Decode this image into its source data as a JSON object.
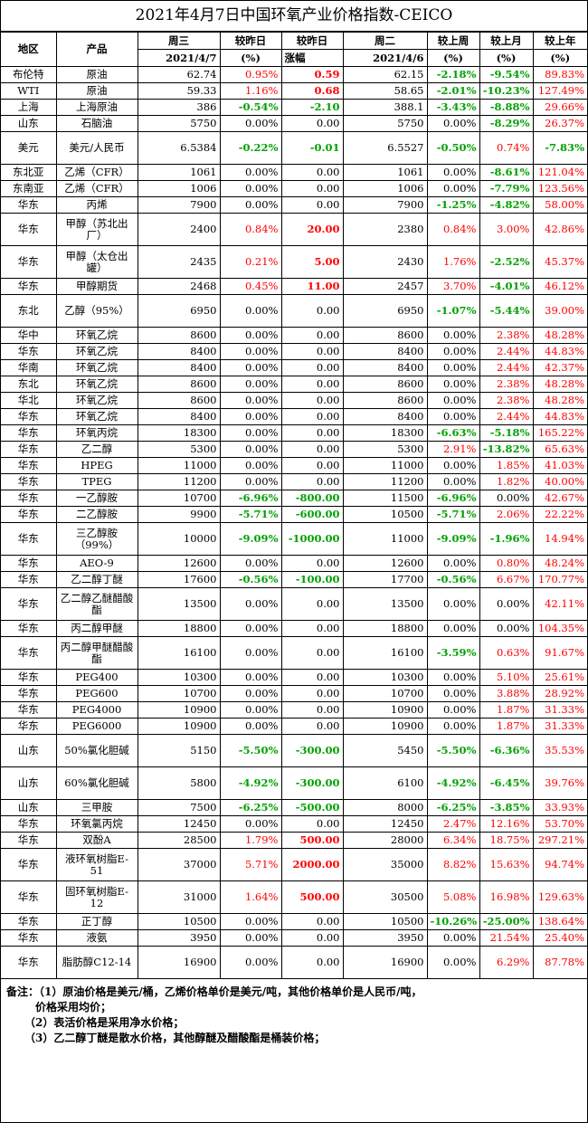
{
  "title": "2021年4月7日中国环氧产业价格指数-CEICO",
  "header": {
    "row1": [
      "地区",
      "产品",
      "周三",
      "较昨日",
      "较昨日",
      "周二",
      "较上周",
      "较上月",
      "较上年"
    ],
    "row2": [
      "2021/4/7",
      "(%)",
      "涨幅",
      "2021/4/6",
      "(%)",
      "(%)",
      "(%)"
    ]
  },
  "rows": [
    {
      "region": "布伦特",
      "product": "原油",
      "wed": "62.74",
      "pct": "0.95%",
      "chg": "0.59",
      "tue": "62.15",
      "week": "-2.18%",
      "month": "-9.54%",
      "year": "89.83%",
      "h": 18
    },
    {
      "region": "WTI",
      "product": "原油",
      "wed": "59.33",
      "pct": "1.16%",
      "chg": "0.68",
      "tue": "58.65",
      "week": "-2.01%",
      "month": "-10.23%",
      "year": "127.49%",
      "h": 18
    },
    {
      "region": "上海",
      "product": "上海原油",
      "wed": "386",
      "pct": "-0.54%",
      "chg": "-2.10",
      "tue": "388.1",
      "week": "-3.43%",
      "month": "-8.88%",
      "year": "29.66%",
      "h": 18
    },
    {
      "region": "山东",
      "product": "石脑油",
      "wed": "5750",
      "pct": "0.00%",
      "chg": "0.00",
      "tue": "5750",
      "week": "0.00%",
      "month": "-8.29%",
      "year": "26.37%",
      "h": 18
    },
    {
      "region": "美元",
      "product": "美元/人民币",
      "wed": "6.5384",
      "pct": "-0.22%",
      "chg": "-0.01",
      "tue": "6.5527",
      "week": "-0.50%",
      "month": "0.74%",
      "year": "-7.83%",
      "h": 36
    },
    {
      "region": "东北亚",
      "product": "乙烯（CFR）",
      "wed": "1061",
      "pct": "0.00%",
      "chg": "0.00",
      "tue": "1061",
      "week": "0.00%",
      "month": "-8.61%",
      "year": "121.04%",
      "h": 18
    },
    {
      "region": "东南亚",
      "product": "乙烯（CFR）",
      "wed": "1006",
      "pct": "0.00%",
      "chg": "0.00",
      "tue": "1006",
      "week": "0.00%",
      "month": "-7.79%",
      "year": "123.56%",
      "h": 18
    },
    {
      "region": "华东",
      "product": "丙烯",
      "wed": "7900",
      "pct": "0.00%",
      "chg": "0.00",
      "tue": "7900",
      "week": "-1.25%",
      "month": "-4.82%",
      "year": "58.00%",
      "h": 18
    },
    {
      "region": "华东",
      "product": "甲醇（苏北出厂）",
      "wed": "2400",
      "pct": "0.84%",
      "chg": "20.00",
      "tue": "2380",
      "week": "0.84%",
      "month": "3.00%",
      "year": "42.86%",
      "h": 36
    },
    {
      "region": "华东",
      "product": "甲醇（太仓出罐）",
      "wed": "2435",
      "pct": "0.21%",
      "chg": "5.00",
      "tue": "2430",
      "week": "1.76%",
      "month": "-2.52%",
      "year": "45.37%",
      "h": 36
    },
    {
      "region": "华东",
      "product": "甲醇期货",
      "wed": "2468",
      "pct": "0.45%",
      "chg": "11.00",
      "tue": "2457",
      "week": "3.70%",
      "month": "-4.01%",
      "year": "46.12%",
      "h": 18
    },
    {
      "region": "东北",
      "product": "乙醇（95%）",
      "wed": "6950",
      "pct": "0.00%",
      "chg": "0.00",
      "tue": "6950",
      "week": "-1.07%",
      "month": "-5.44%",
      "year": "39.00%",
      "h": 36
    },
    {
      "region": "华中",
      "product": "环氧乙烷",
      "wed": "8600",
      "pct": "0.00%",
      "chg": "0.00",
      "tue": "8600",
      "week": "0.00%",
      "month": "2.38%",
      "year": "48.28%",
      "h": 18
    },
    {
      "region": "华东",
      "product": "环氧乙烷",
      "wed": "8400",
      "pct": "0.00%",
      "chg": "0.00",
      "tue": "8400",
      "week": "0.00%",
      "month": "2.44%",
      "year": "44.83%",
      "h": 18
    },
    {
      "region": "华南",
      "product": "环氧乙烷",
      "wed": "8400",
      "pct": "0.00%",
      "chg": "0.00",
      "tue": "8400",
      "week": "0.00%",
      "month": "2.44%",
      "year": "42.37%",
      "h": 18
    },
    {
      "region": "东北",
      "product": "环氧乙烷",
      "wed": "8600",
      "pct": "0.00%",
      "chg": "0.00",
      "tue": "8600",
      "week": "0.00%",
      "month": "2.38%",
      "year": "48.28%",
      "h": 18
    },
    {
      "region": "华北",
      "product": "环氧乙烷",
      "wed": "8600",
      "pct": "0.00%",
      "chg": "0.00",
      "tue": "8600",
      "week": "0.00%",
      "month": "2.38%",
      "year": "48.28%",
      "h": 18
    },
    {
      "region": "华东",
      "product": "环氧乙烷",
      "wed": "8400",
      "pct": "0.00%",
      "chg": "0.00",
      "tue": "8400",
      "week": "0.00%",
      "month": "2.44%",
      "year": "44.83%",
      "h": 18
    },
    {
      "region": "华东",
      "product": "环氧丙烷",
      "wed": "18300",
      "pct": "0.00%",
      "chg": "0.00",
      "tue": "18300",
      "week": "-6.63%",
      "month": "-5.18%",
      "year": "165.22%",
      "h": 18
    },
    {
      "region": "华东",
      "product": "乙二醇",
      "wed": "5300",
      "pct": "0.00%",
      "chg": "0.00",
      "tue": "5300",
      "week": "2.91%",
      "month": "-13.82%",
      "year": "65.63%",
      "h": 18
    },
    {
      "region": "华东",
      "product": "HPEG",
      "wed": "11000",
      "pct": "0.00%",
      "chg": "0.00",
      "tue": "11000",
      "week": "0.00%",
      "month": "1.85%",
      "year": "41.03%",
      "h": 18
    },
    {
      "region": "华东",
      "product": "TPEG",
      "wed": "11200",
      "pct": "0.00%",
      "chg": "0.00",
      "tue": "11200",
      "week": "0.00%",
      "month": "1.82%",
      "year": "40.00%",
      "h": 18
    },
    {
      "region": "华东",
      "product": "一乙醇胺",
      "wed": "10700",
      "pct": "-6.96%",
      "chg": "-800.00",
      "tue": "11500",
      "week": "-6.96%",
      "month": "0.00%",
      "year": "42.67%",
      "h": 18
    },
    {
      "region": "华东",
      "product": "二乙醇胺",
      "wed": "9900",
      "pct": "-5.71%",
      "chg": "-600.00",
      "tue": "10500",
      "week": "-5.71%",
      "month": "2.06%",
      "year": "22.22%",
      "h": 18
    },
    {
      "region": "华东",
      "product": "三乙醇胺（99%）",
      "wed": "10000",
      "pct": "-9.09%",
      "chg": "-1000.00",
      "tue": "11000",
      "week": "-9.09%",
      "month": "-1.96%",
      "year": "14.94%",
      "h": 36
    },
    {
      "region": "华东",
      "product": "AEO-9",
      "wed": "12600",
      "pct": "0.00%",
      "chg": "0.00",
      "tue": "12600",
      "week": "0.00%",
      "month": "0.80%",
      "year": "48.24%",
      "h": 18
    },
    {
      "region": "华东",
      "product": "乙二醇丁醚",
      "wed": "17600",
      "pct": "-0.56%",
      "chg": "-100.00",
      "tue": "17700",
      "week": "-0.56%",
      "month": "6.67%",
      "year": "170.77%",
      "h": 18
    },
    {
      "region": "华东",
      "product": "乙二醇乙醚醋酸酯",
      "wed": "13500",
      "pct": "0.00%",
      "chg": "0.00",
      "tue": "13500",
      "week": "0.00%",
      "month": "0.00%",
      "year": "42.11%",
      "h": 36
    },
    {
      "region": "华东",
      "product": "丙二醇甲醚",
      "wed": "18800",
      "pct": "0.00%",
      "chg": "0.00",
      "tue": "18800",
      "week": "0.00%",
      "month": "0.00%",
      "year": "104.35%",
      "h": 18
    },
    {
      "region": "华东",
      "product": "丙二醇甲醚醋酸酯",
      "wed": "16100",
      "pct": "0.00%",
      "chg": "0.00",
      "tue": "16100",
      "week": "-3.59%",
      "month": "0.63%",
      "year": "91.67%",
      "h": 36
    },
    {
      "region": "华东",
      "product": "PEG400",
      "wed": "10300",
      "pct": "0.00%",
      "chg": "0.00",
      "tue": "10300",
      "week": "0.00%",
      "month": "5.10%",
      "year": "25.61%",
      "h": 18
    },
    {
      "region": "华东",
      "product": "PEG600",
      "wed": "10700",
      "pct": "0.00%",
      "chg": "0.00",
      "tue": "10700",
      "week": "0.00%",
      "month": "3.88%",
      "year": "28.92%",
      "h": 18
    },
    {
      "region": "华东",
      "product": "PEG4000",
      "wed": "10900",
      "pct": "0.00%",
      "chg": "0.00",
      "tue": "10900",
      "week": "0.00%",
      "month": "1.87%",
      "year": "31.33%",
      "h": 18
    },
    {
      "region": "华东",
      "product": "PEG6000",
      "wed": "10900",
      "pct": "0.00%",
      "chg": "0.00",
      "tue": "10900",
      "week": "0.00%",
      "month": "1.87%",
      "year": "31.33%",
      "h": 18
    },
    {
      "region": "山东",
      "product": "50%氯化胆碱",
      "wed": "5150",
      "pct": "-5.50%",
      "chg": "-300.00",
      "tue": "5450",
      "week": "-5.50%",
      "month": "-6.36%",
      "year": "35.53%",
      "h": 36
    },
    {
      "region": "山东",
      "product": "60%氯化胆碱",
      "wed": "5800",
      "pct": "-4.92%",
      "chg": "-300.00",
      "tue": "6100",
      "week": "-4.92%",
      "month": "-6.45%",
      "year": "39.76%",
      "h": 36
    },
    {
      "region": "山东",
      "product": "三甲胺",
      "wed": "7500",
      "pct": "-6.25%",
      "chg": "-500.00",
      "tue": "8000",
      "week": "-6.25%",
      "month": "-3.85%",
      "year": "33.93%",
      "h": 18
    },
    {
      "region": "华东",
      "product": "环氧氯丙烷",
      "wed": "12450",
      "pct": "0.00%",
      "chg": "0.00",
      "tue": "12450",
      "week": "2.47%",
      "month": "12.16%",
      "year": "53.70%",
      "h": 18
    },
    {
      "region": "华东",
      "product": "双酚A",
      "wed": "28500",
      "pct": "1.79%",
      "chg": "500.00",
      "tue": "28000",
      "week": "6.34%",
      "month": "18.75%",
      "year": "297.21%",
      "h": 18
    },
    {
      "region": "华东",
      "product": "液环氧树脂E-51",
      "wed": "37000",
      "pct": "5.71%",
      "chg": "2000.00",
      "tue": "35000",
      "week": "8.82%",
      "month": "15.63%",
      "year": "94.74%",
      "h": 36
    },
    {
      "region": "华东",
      "product": "固环氧树脂E-12",
      "wed": "31000",
      "pct": "1.64%",
      "chg": "500.00",
      "tue": "30500",
      "week": "5.08%",
      "month": "16.98%",
      "year": "129.63%",
      "h": 36
    },
    {
      "region": "华东",
      "product": "正丁醇",
      "wed": "10500",
      "pct": "0.00%",
      "chg": "0.00",
      "tue": "10500",
      "week": "-10.26%",
      "month": "-25.00%",
      "year": "138.64%",
      "h": 18
    },
    {
      "region": "华东",
      "product": "液氨",
      "wed": "3950",
      "pct": "0.00%",
      "chg": "0.00",
      "tue": "3950",
      "week": "0.00%",
      "month": "21.54%",
      "year": "25.40%",
      "h": 18
    },
    {
      "region": "华东",
      "product": "脂肪醇C12-14",
      "wed": "16900",
      "pct": "0.00%",
      "chg": "0.00",
      "tue": "16900",
      "week": "0.00%",
      "month": "6.29%",
      "year": "87.78%",
      "h": 36
    }
  ],
  "notes": [
    "备注：（1）原油价格是美元/桶，乙烯价格单价是美元/吨，其他价格单价是人民币/吨，",
    "价格采用均价；",
    "（2）表活价格是采用净水价格；",
    "（3）乙二醇丁醚是散水价格，其他醇醚及醋酸酯是桶装价格；"
  ],
  "colors": {
    "up": "#ff0000",
    "down": "#00a000",
    "flat": "#000000"
  }
}
